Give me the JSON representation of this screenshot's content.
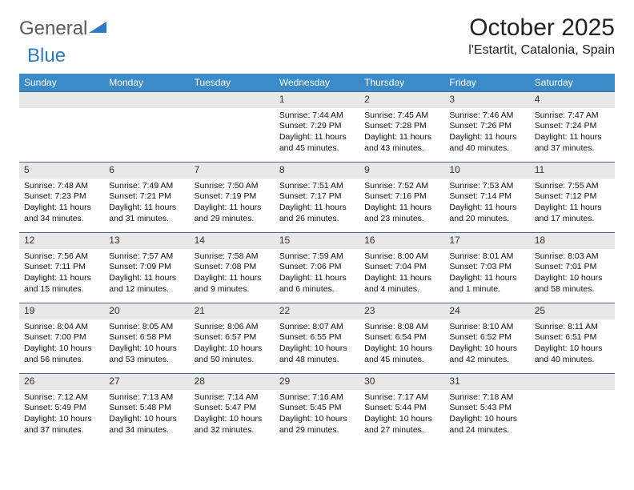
{
  "logo": {
    "part1": "General",
    "part2": "Blue"
  },
  "title": "October 2025",
  "location": "l'Estartit, Catalonia, Spain",
  "colors": {
    "header_bg": "#3b8bc8",
    "header_text": "#ffffff",
    "daynum_bg": "#e8e8e8",
    "row_border": "#4a6a8a",
    "logo_gray": "#5a5a5a",
    "logo_blue": "#2f7bbf"
  },
  "weekdays": [
    "Sunday",
    "Monday",
    "Tuesday",
    "Wednesday",
    "Thursday",
    "Friday",
    "Saturday"
  ],
  "weeks": [
    [
      {
        "empty": true
      },
      {
        "empty": true
      },
      {
        "empty": true
      },
      {
        "day": "1",
        "sunrise": "Sunrise: 7:44 AM",
        "sunset": "Sunset: 7:29 PM",
        "daylight1": "Daylight: 11 hours",
        "daylight2": "and 45 minutes."
      },
      {
        "day": "2",
        "sunrise": "Sunrise: 7:45 AM",
        "sunset": "Sunset: 7:28 PM",
        "daylight1": "Daylight: 11 hours",
        "daylight2": "and 43 minutes."
      },
      {
        "day": "3",
        "sunrise": "Sunrise: 7:46 AM",
        "sunset": "Sunset: 7:26 PM",
        "daylight1": "Daylight: 11 hours",
        "daylight2": "and 40 minutes."
      },
      {
        "day": "4",
        "sunrise": "Sunrise: 7:47 AM",
        "sunset": "Sunset: 7:24 PM",
        "daylight1": "Daylight: 11 hours",
        "daylight2": "and 37 minutes."
      }
    ],
    [
      {
        "day": "5",
        "sunrise": "Sunrise: 7:48 AM",
        "sunset": "Sunset: 7:23 PM",
        "daylight1": "Daylight: 11 hours",
        "daylight2": "and 34 minutes."
      },
      {
        "day": "6",
        "sunrise": "Sunrise: 7:49 AM",
        "sunset": "Sunset: 7:21 PM",
        "daylight1": "Daylight: 11 hours",
        "daylight2": "and 31 minutes."
      },
      {
        "day": "7",
        "sunrise": "Sunrise: 7:50 AM",
        "sunset": "Sunset: 7:19 PM",
        "daylight1": "Daylight: 11 hours",
        "daylight2": "and 29 minutes."
      },
      {
        "day": "8",
        "sunrise": "Sunrise: 7:51 AM",
        "sunset": "Sunset: 7:17 PM",
        "daylight1": "Daylight: 11 hours",
        "daylight2": "and 26 minutes."
      },
      {
        "day": "9",
        "sunrise": "Sunrise: 7:52 AM",
        "sunset": "Sunset: 7:16 PM",
        "daylight1": "Daylight: 11 hours",
        "daylight2": "and 23 minutes."
      },
      {
        "day": "10",
        "sunrise": "Sunrise: 7:53 AM",
        "sunset": "Sunset: 7:14 PM",
        "daylight1": "Daylight: 11 hours",
        "daylight2": "and 20 minutes."
      },
      {
        "day": "11",
        "sunrise": "Sunrise: 7:55 AM",
        "sunset": "Sunset: 7:12 PM",
        "daylight1": "Daylight: 11 hours",
        "daylight2": "and 17 minutes."
      }
    ],
    [
      {
        "day": "12",
        "sunrise": "Sunrise: 7:56 AM",
        "sunset": "Sunset: 7:11 PM",
        "daylight1": "Daylight: 11 hours",
        "daylight2": "and 15 minutes."
      },
      {
        "day": "13",
        "sunrise": "Sunrise: 7:57 AM",
        "sunset": "Sunset: 7:09 PM",
        "daylight1": "Daylight: 11 hours",
        "daylight2": "and 12 minutes."
      },
      {
        "day": "14",
        "sunrise": "Sunrise: 7:58 AM",
        "sunset": "Sunset: 7:08 PM",
        "daylight1": "Daylight: 11 hours",
        "daylight2": "and 9 minutes."
      },
      {
        "day": "15",
        "sunrise": "Sunrise: 7:59 AM",
        "sunset": "Sunset: 7:06 PM",
        "daylight1": "Daylight: 11 hours",
        "daylight2": "and 6 minutes."
      },
      {
        "day": "16",
        "sunrise": "Sunrise: 8:00 AM",
        "sunset": "Sunset: 7:04 PM",
        "daylight1": "Daylight: 11 hours",
        "daylight2": "and 4 minutes."
      },
      {
        "day": "17",
        "sunrise": "Sunrise: 8:01 AM",
        "sunset": "Sunset: 7:03 PM",
        "daylight1": "Daylight: 11 hours",
        "daylight2": "and 1 minute."
      },
      {
        "day": "18",
        "sunrise": "Sunrise: 8:03 AM",
        "sunset": "Sunset: 7:01 PM",
        "daylight1": "Daylight: 10 hours",
        "daylight2": "and 58 minutes."
      }
    ],
    [
      {
        "day": "19",
        "sunrise": "Sunrise: 8:04 AM",
        "sunset": "Sunset: 7:00 PM",
        "daylight1": "Daylight: 10 hours",
        "daylight2": "and 56 minutes."
      },
      {
        "day": "20",
        "sunrise": "Sunrise: 8:05 AM",
        "sunset": "Sunset: 6:58 PM",
        "daylight1": "Daylight: 10 hours",
        "daylight2": "and 53 minutes."
      },
      {
        "day": "21",
        "sunrise": "Sunrise: 8:06 AM",
        "sunset": "Sunset: 6:57 PM",
        "daylight1": "Daylight: 10 hours",
        "daylight2": "and 50 minutes."
      },
      {
        "day": "22",
        "sunrise": "Sunrise: 8:07 AM",
        "sunset": "Sunset: 6:55 PM",
        "daylight1": "Daylight: 10 hours",
        "daylight2": "and 48 minutes."
      },
      {
        "day": "23",
        "sunrise": "Sunrise: 8:08 AM",
        "sunset": "Sunset: 6:54 PM",
        "daylight1": "Daylight: 10 hours",
        "daylight2": "and 45 minutes."
      },
      {
        "day": "24",
        "sunrise": "Sunrise: 8:10 AM",
        "sunset": "Sunset: 6:52 PM",
        "daylight1": "Daylight: 10 hours",
        "daylight2": "and 42 minutes."
      },
      {
        "day": "25",
        "sunrise": "Sunrise: 8:11 AM",
        "sunset": "Sunset: 6:51 PM",
        "daylight1": "Daylight: 10 hours",
        "daylight2": "and 40 minutes."
      }
    ],
    [
      {
        "day": "26",
        "sunrise": "Sunrise: 7:12 AM",
        "sunset": "Sunset: 5:49 PM",
        "daylight1": "Daylight: 10 hours",
        "daylight2": "and 37 minutes."
      },
      {
        "day": "27",
        "sunrise": "Sunrise: 7:13 AM",
        "sunset": "Sunset: 5:48 PM",
        "daylight1": "Daylight: 10 hours",
        "daylight2": "and 34 minutes."
      },
      {
        "day": "28",
        "sunrise": "Sunrise: 7:14 AM",
        "sunset": "Sunset: 5:47 PM",
        "daylight1": "Daylight: 10 hours",
        "daylight2": "and 32 minutes."
      },
      {
        "day": "29",
        "sunrise": "Sunrise: 7:16 AM",
        "sunset": "Sunset: 5:45 PM",
        "daylight1": "Daylight: 10 hours",
        "daylight2": "and 29 minutes."
      },
      {
        "day": "30",
        "sunrise": "Sunrise: 7:17 AM",
        "sunset": "Sunset: 5:44 PM",
        "daylight1": "Daylight: 10 hours",
        "daylight2": "and 27 minutes."
      },
      {
        "day": "31",
        "sunrise": "Sunrise: 7:18 AM",
        "sunset": "Sunset: 5:43 PM",
        "daylight1": "Daylight: 10 hours",
        "daylight2": "and 24 minutes."
      },
      {
        "empty": true
      }
    ]
  ]
}
